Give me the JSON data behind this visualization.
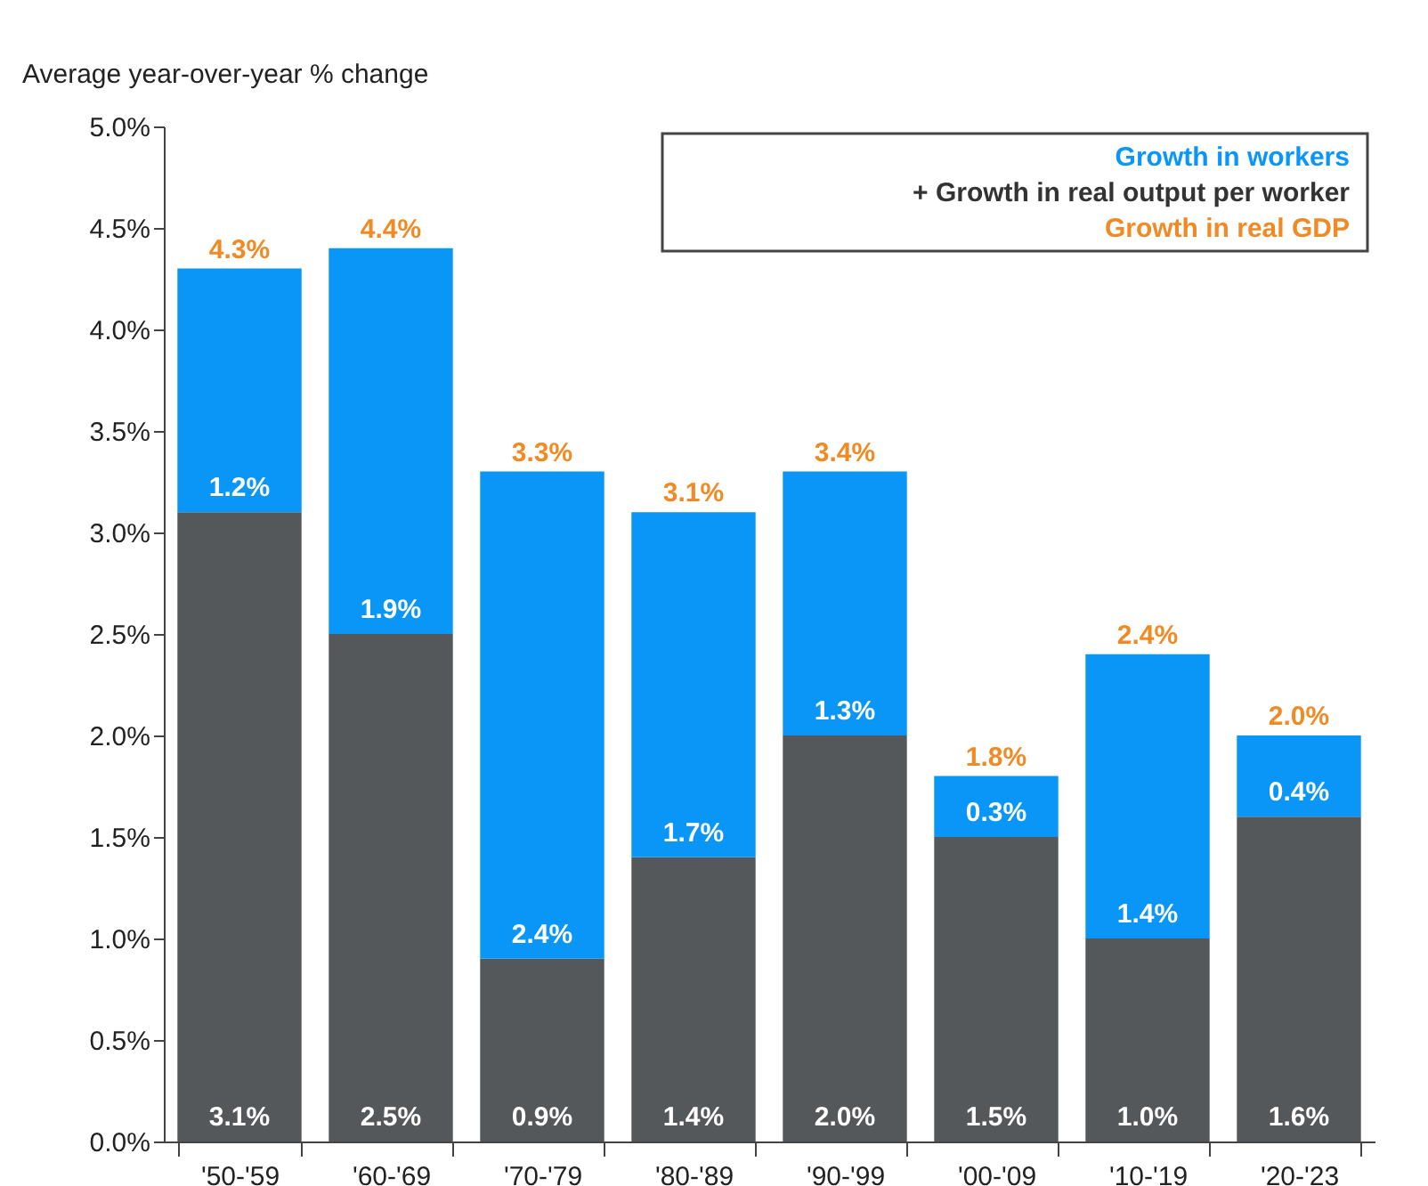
{
  "chart_data": {
    "type": "bar",
    "stacked": true,
    "ylabel": "Average year-over-year % change",
    "categories": [
      "'50-'59",
      "'60-'69",
      "'70-'79",
      "'80-'89",
      "'90-'99",
      "'00-'09",
      "'10-'19",
      "'20-'23"
    ],
    "series": [
      {
        "name": "+ Growth in real output per worker",
        "color": "#55585b",
        "values": [
          3.1,
          2.5,
          0.9,
          1.4,
          2.0,
          1.5,
          1.0,
          1.6
        ],
        "value_labels": [
          "3.1%",
          "2.5%",
          "0.9%",
          "1.4%",
          "2.0%",
          "1.5%",
          "1.0%",
          "1.6%"
        ]
      },
      {
        "name": "Growth in workers",
        "color": "#0a96f7",
        "values": [
          1.2,
          1.9,
          2.4,
          1.7,
          1.3,
          0.3,
          1.4,
          0.4
        ],
        "value_labels": [
          "1.2%",
          "1.9%",
          "2.4%",
          "1.7%",
          "1.3%",
          "0.3%",
          "1.4%",
          "0.4%"
        ]
      }
    ],
    "totals": [
      "4.3%",
      "4.4%",
      "3.3%",
      "3.1%",
      "3.4%",
      "1.8%",
      "2.4%",
      "2.0%"
    ],
    "annotations": [
      "Growth in real GDP"
    ],
    "ylim": [
      0,
      5
    ],
    "yticks": [
      {
        "value": 0,
        "label": "0.0%"
      },
      {
        "value": 0.5,
        "label": "0.5%"
      },
      {
        "value": 1,
        "label": "1.0%"
      },
      {
        "value": 1.5,
        "label": "1.5%"
      },
      {
        "value": 2,
        "label": "2.0%"
      },
      {
        "value": 2.5,
        "label": "2.5%"
      },
      {
        "value": 3,
        "label": "3.0%"
      },
      {
        "value": 3.5,
        "label": "3.5%"
      },
      {
        "value": 4,
        "label": "4.0%"
      },
      {
        "value": 4.5,
        "label": "4.5%"
      },
      {
        "value": 5,
        "label": "5.0%"
      }
    ],
    "grid": false,
    "legend": "top right"
  }
}
